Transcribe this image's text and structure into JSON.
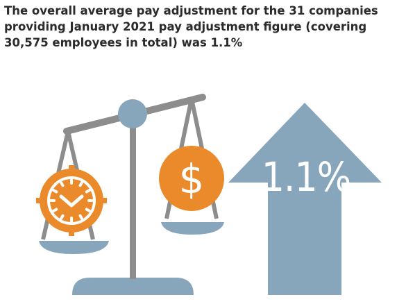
{
  "headline": {
    "lines": [
      "The overall average pay adjustment for the 31 companies",
      "providing January 2021 pay adjustment figure (covering",
      "30,575 employees in total) was 1.1%"
    ]
  },
  "arrow": {
    "value_label": "1.1%"
  },
  "icons": {
    "clock": "clock-icon",
    "coin": "dollar-coin-icon",
    "scale": "balance-scale-icon",
    "arrow": "up-arrow-icon"
  },
  "colors": {
    "blue_grey": "#87a5bb",
    "orange": "#ea8a2a",
    "beam_grey": "#8d8d8d",
    "text": "#2b2b2b"
  }
}
